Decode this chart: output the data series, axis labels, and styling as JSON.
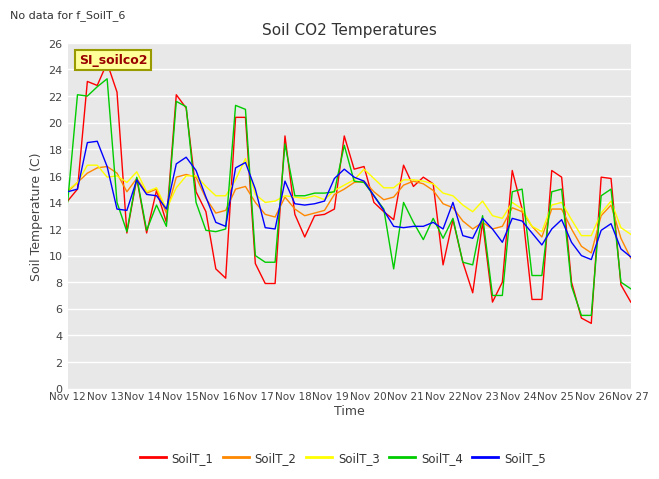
{
  "title": "Soil CO2 Temperatures",
  "xlabel": "Time",
  "ylabel": "Soil Temperature (C)",
  "note": "No data for f_SoilT_6",
  "legend_label": "SI_soilco2",
  "x_ticks": [
    "Nov 12",
    "Nov 13",
    "Nov 14",
    "Nov 15",
    "Nov 16",
    "Nov 17",
    "Nov 18",
    "Nov 19",
    "Nov 20",
    "Nov 21",
    "Nov 22",
    "Nov 23",
    "Nov 24",
    "Nov 25",
    "Nov 26",
    "Nov 27"
  ],
  "ylim": [
    0,
    26
  ],
  "yticks": [
    0,
    2,
    4,
    6,
    8,
    10,
    12,
    14,
    16,
    18,
    20,
    22,
    24,
    26
  ],
  "series_colors": {
    "SoilT_1": "#ff0000",
    "SoilT_2": "#ff8800",
    "SoilT_3": "#ffff00",
    "SoilT_4": "#00cc00",
    "SoilT_5": "#0000ff"
  },
  "plot_bg_color": "#e8e8e8",
  "grid_color": "#ffffff",
  "SoilT_1": [
    14.1,
    15.0,
    23.1,
    22.8,
    24.5,
    22.3,
    11.7,
    15.8,
    11.7,
    14.9,
    12.5,
    22.1,
    21.1,
    14.8,
    13.3,
    9.0,
    8.3,
    20.4,
    20.4,
    9.4,
    7.9,
    7.9,
    19.0,
    13.1,
    11.4,
    13.0,
    13.1,
    13.5,
    19.0,
    16.5,
    16.7,
    14.0,
    13.3,
    12.7,
    16.8,
    15.2,
    15.9,
    15.4,
    9.3,
    12.7,
    9.5,
    7.2,
    12.5,
    6.5,
    8.0,
    16.4,
    13.5,
    6.7,
    6.7,
    16.4,
    15.9,
    8.0,
    5.3,
    4.9,
    15.9,
    15.8,
    7.8,
    6.5
  ],
  "SoilT_2": [
    14.8,
    15.5,
    16.2,
    16.6,
    16.7,
    16.2,
    14.8,
    15.8,
    14.7,
    15.0,
    13.2,
    15.9,
    16.1,
    15.9,
    14.3,
    13.2,
    13.4,
    15.0,
    15.2,
    14.0,
    13.1,
    12.9,
    14.4,
    13.5,
    13.0,
    13.2,
    13.4,
    14.6,
    15.0,
    15.5,
    15.6,
    14.8,
    14.2,
    14.4,
    15.3,
    15.6,
    15.4,
    14.9,
    13.9,
    13.6,
    12.6,
    12.0,
    12.5,
    12.0,
    12.2,
    13.6,
    13.3,
    12.2,
    11.4,
    13.5,
    13.5,
    12.0,
    10.7,
    10.2,
    13.0,
    13.8,
    11.3,
    9.8
  ],
  "SoilT_3": [
    14.9,
    15.5,
    16.8,
    16.8,
    15.9,
    16.0,
    15.5,
    16.3,
    14.8,
    15.1,
    13.5,
    15.1,
    16.0,
    16.0,
    15.2,
    14.5,
    14.5,
    15.7,
    17.3,
    14.6,
    14.0,
    14.1,
    14.5,
    14.4,
    14.3,
    14.5,
    14.2,
    14.9,
    15.3,
    15.7,
    16.5,
    15.8,
    15.1,
    15.1,
    15.7,
    15.7,
    15.6,
    15.4,
    14.7,
    14.5,
    13.8,
    13.3,
    14.1,
    13.0,
    12.8,
    14.0,
    13.5,
    12.2,
    11.8,
    13.8,
    14.0,
    12.7,
    11.5,
    11.5,
    13.2,
    14.1,
    12.1,
    11.6
  ],
  "SoilT_4": [
    14.0,
    22.1,
    22.0,
    22.7,
    23.3,
    14.0,
    11.8,
    15.9,
    11.9,
    13.8,
    12.2,
    21.6,
    21.2,
    14.0,
    11.9,
    11.8,
    12.0,
    21.3,
    21.0,
    10.0,
    9.5,
    9.5,
    18.4,
    14.5,
    14.5,
    14.7,
    14.7,
    14.8,
    18.3,
    15.6,
    15.5,
    14.5,
    13.5,
    9.0,
    14.0,
    12.5,
    11.2,
    12.8,
    11.3,
    12.8,
    9.5,
    9.3,
    13.0,
    7.0,
    7.0,
    14.8,
    15.0,
    8.5,
    8.5,
    14.8,
    15.0,
    7.7,
    5.5,
    5.5,
    14.5,
    15.0,
    8.0,
    7.5
  ],
  "SoilT_5": [
    14.8,
    15.0,
    18.5,
    18.6,
    16.7,
    13.5,
    13.4,
    15.7,
    14.6,
    14.5,
    13.5,
    16.9,
    17.4,
    16.4,
    14.4,
    12.5,
    12.2,
    16.6,
    17.0,
    15.0,
    12.1,
    12.0,
    15.6,
    13.9,
    13.8,
    13.9,
    14.1,
    15.8,
    16.5,
    15.9,
    15.6,
    14.5,
    13.4,
    12.2,
    12.1,
    12.2,
    12.2,
    12.5,
    12.0,
    14.0,
    11.5,
    11.3,
    12.8,
    12.0,
    11.0,
    12.8,
    12.6,
    11.7,
    10.8,
    12.0,
    12.7,
    11.0,
    10.0,
    9.7,
    11.9,
    12.4,
    10.5,
    9.9
  ],
  "figsize": [
    6.4,
    4.8
  ],
  "dpi": 100
}
